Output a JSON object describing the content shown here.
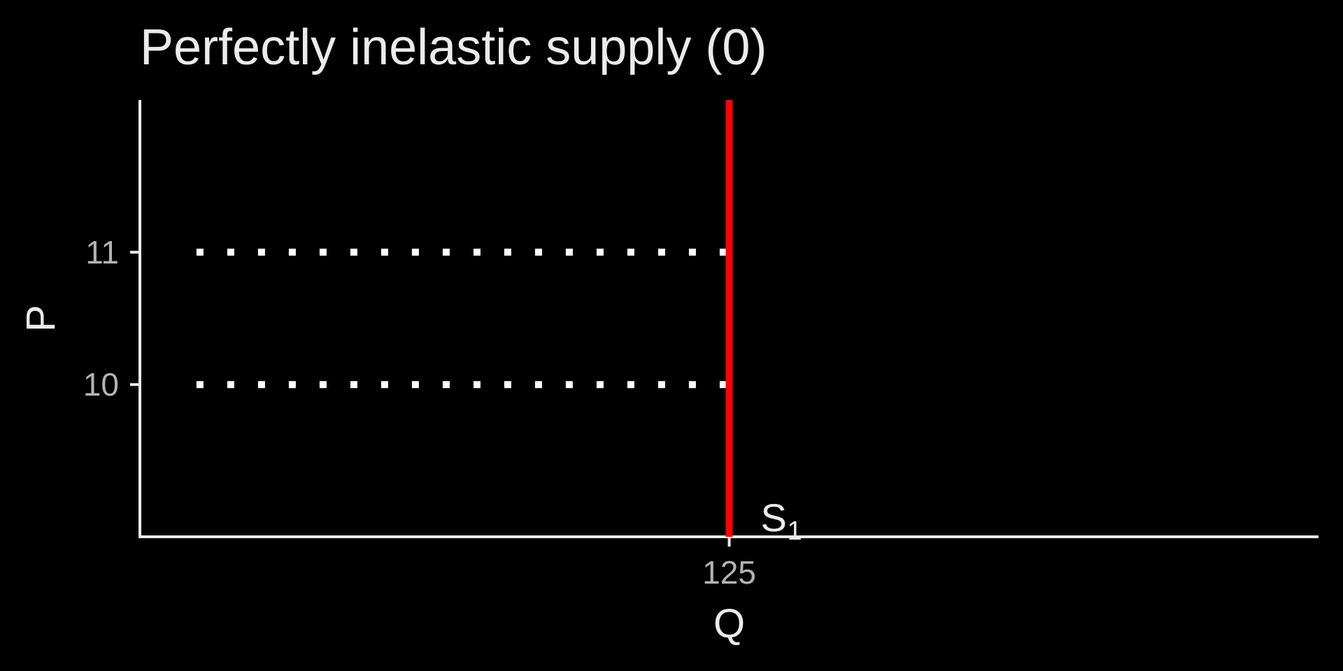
{
  "chart_data": {
    "type": "line",
    "title": "Perfectly inelastic supply (0)",
    "xlabel": "Q",
    "ylabel": "P",
    "xlim": [
      0,
      250
    ],
    "ylim": [
      8.85,
      12.15
    ],
    "x_ticks": [
      125
    ],
    "y_ticks": [
      10,
      11
    ],
    "grid": false,
    "series": [
      {
        "name": "S1",
        "label": "S",
        "label_sub": "1",
        "color": "#ff0000",
        "x": [
          125,
          125
        ],
        "y": [
          8.85,
          12.15
        ]
      }
    ],
    "reference_lines": [
      {
        "y": 11,
        "x_from": 12,
        "x_to": 125,
        "style": "dotted",
        "color": "#ffffff"
      },
      {
        "y": 10,
        "x_from": 12,
        "x_to": 125,
        "style": "dotted",
        "color": "#ffffff"
      }
    ],
    "colors": {
      "background": "#000000",
      "axis": "#ebebeb",
      "tick_text": "#b3b3b3",
      "text": "#ebebeb"
    }
  }
}
